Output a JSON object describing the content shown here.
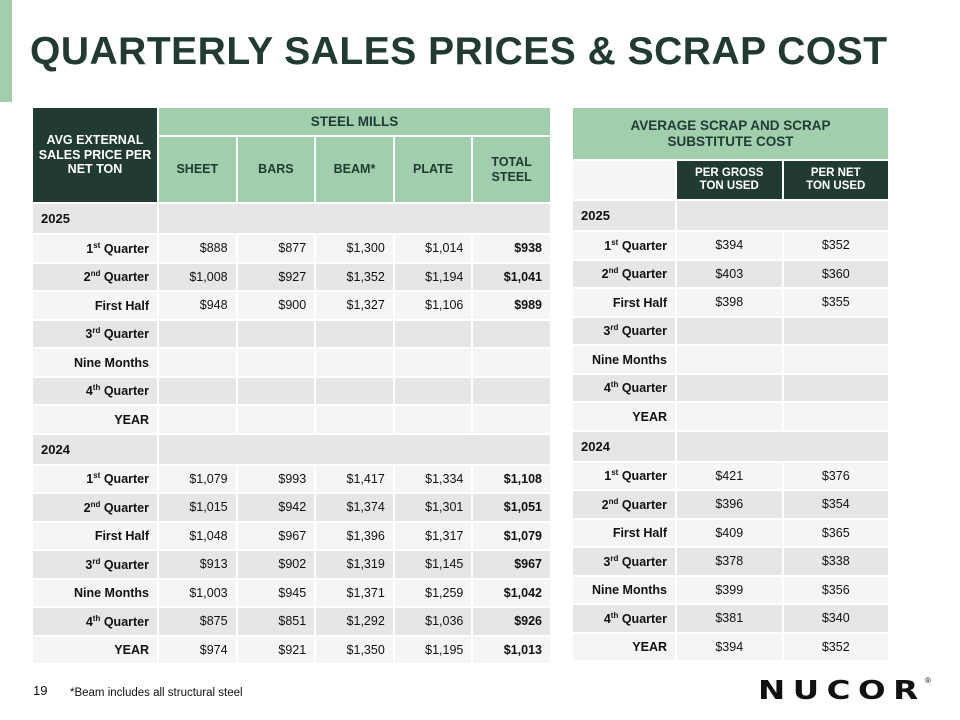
{
  "title": "QUARTERLY SALES PRICES & SCRAP COST",
  "left": {
    "corner": "AVG EXTERNAL SALES PRICE PER NET TON",
    "group": "STEEL MILLS",
    "columns": [
      "SHEET",
      "BARS",
      "BEAM*",
      "PLATE",
      "TOTAL STEEL"
    ],
    "sections": [
      {
        "year": "2025",
        "rows": [
          {
            "label": "1",
            "sup": "st",
            "suffix": " Quarter",
            "values": [
              "$888",
              "$877",
              "$1,300",
              "$1,014",
              "$938"
            ]
          },
          {
            "label": "2",
            "sup": "nd",
            "suffix": " Quarter",
            "values": [
              "$1,008",
              "$927",
              "$1,352",
              "$1,194",
              "$1,041"
            ]
          },
          {
            "label": "First Half",
            "sup": "",
            "suffix": "",
            "values": [
              "$948",
              "$900",
              "$1,327",
              "$1,106",
              "$989"
            ]
          },
          {
            "label": "3",
            "sup": "rd",
            "suffix": " Quarter",
            "values": [
              "",
              "",
              "",
              "",
              ""
            ]
          },
          {
            "label": "Nine Months",
            "sup": "",
            "suffix": "",
            "values": [
              "",
              "",
              "",
              "",
              ""
            ]
          },
          {
            "label": "4",
            "sup": "th",
            "suffix": " Quarter",
            "values": [
              "",
              "",
              "",
              "",
              ""
            ]
          },
          {
            "label": "YEAR",
            "sup": "",
            "suffix": "",
            "values": [
              "",
              "",
              "",
              "",
              ""
            ]
          }
        ]
      },
      {
        "year": "2024",
        "rows": [
          {
            "label": "1",
            "sup": "st",
            "suffix": " Quarter",
            "values": [
              "$1,079",
              "$993",
              "$1,417",
              "$1,334",
              "$1,108"
            ]
          },
          {
            "label": "2",
            "sup": "nd",
            "suffix": " Quarter",
            "values": [
              "$1,015",
              "$942",
              "$1,374",
              "$1,301",
              "$1,051"
            ]
          },
          {
            "label": "First Half",
            "sup": "",
            "suffix": "",
            "values": [
              "$1,048",
              "$967",
              "$1,396",
              "$1,317",
              "$1,079"
            ]
          },
          {
            "label": "3",
            "sup": "rd",
            "suffix": " Quarter",
            "values": [
              "$913",
              "$902",
              "$1,319",
              "$1,145",
              "$967"
            ]
          },
          {
            "label": "Nine Months",
            "sup": "",
            "suffix": "",
            "values": [
              "$1,003",
              "$945",
              "$1,371",
              "$1,259",
              "$1,042"
            ]
          },
          {
            "label": "4",
            "sup": "th",
            "suffix": " Quarter",
            "values": [
              "$875",
              "$851",
              "$1,292",
              "$1,036",
              "$926"
            ]
          },
          {
            "label": "YEAR",
            "sup": "",
            "suffix": "",
            "values": [
              "$974",
              "$921",
              "$1,350",
              "$1,195",
              "$1,013"
            ]
          }
        ]
      }
    ]
  },
  "right": {
    "group": "AVERAGE SCRAP AND SCRAP SUBSTITUTE COST",
    "columns": [
      "PER GROSS TON USED",
      "PER NET TON USED"
    ],
    "sections": [
      {
        "year": "2025",
        "rows": [
          {
            "label": "1",
            "sup": "st",
            "suffix": " Quarter",
            "values": [
              "$394",
              "$352"
            ]
          },
          {
            "label": "2",
            "sup": "nd",
            "suffix": " Quarter",
            "values": [
              "$403",
              "$360"
            ]
          },
          {
            "label": "First Half",
            "sup": "",
            "suffix": "",
            "values": [
              "$398",
              "$355"
            ]
          },
          {
            "label": "3",
            "sup": "rd",
            "suffix": " Quarter",
            "values": [
              "",
              ""
            ]
          },
          {
            "label": "Nine Months",
            "sup": "",
            "suffix": "",
            "values": [
              "",
              ""
            ]
          },
          {
            "label": "4",
            "sup": "th",
            "suffix": " Quarter",
            "values": [
              "",
              ""
            ]
          },
          {
            "label": "YEAR",
            "sup": "",
            "suffix": "",
            "values": [
              "",
              ""
            ]
          }
        ]
      },
      {
        "year": "2024",
        "rows": [
          {
            "label": "1",
            "sup": "st",
            "suffix": " Quarter",
            "values": [
              "$421",
              "$376"
            ]
          },
          {
            "label": "2",
            "sup": "nd",
            "suffix": " Quarter",
            "values": [
              "$396",
              "$354"
            ]
          },
          {
            "label": "First Half",
            "sup": "",
            "suffix": "",
            "values": [
              "$409",
              "$365"
            ]
          },
          {
            "label": "3",
            "sup": "rd",
            "suffix": " Quarter",
            "values": [
              "$378",
              "$338"
            ]
          },
          {
            "label": "Nine Months",
            "sup": "",
            "suffix": "",
            "values": [
              "$399",
              "$356"
            ]
          },
          {
            "label": "4",
            "sup": "th",
            "suffix": " Quarter",
            "values": [
              "$381",
              "$340"
            ]
          },
          {
            "label": "YEAR",
            "sup": "",
            "suffix": "",
            "values": [
              "$394",
              "$352"
            ]
          }
        ]
      }
    ]
  },
  "footer": {
    "page": "19",
    "note": "*Beam includes all structural steel",
    "logo": "NUCOR",
    "reg": "®"
  }
}
